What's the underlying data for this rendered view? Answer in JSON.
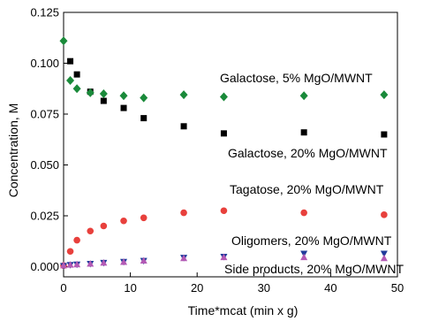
{
  "chart_data": {
    "type": "scatter",
    "title": "",
    "xlabel": "Time*mcat (min x g)",
    "ylabel": "Concentration, M",
    "xlim": [
      0,
      50
    ],
    "ylim": [
      -0.005,
      0.125
    ],
    "xticks": [
      "0",
      "10",
      "20",
      "30",
      "40",
      "50"
    ],
    "yticks": [
      "0.000",
      "0.025",
      "0.050",
      "0.075",
      "0.100",
      "0.125"
    ],
    "grid": false,
    "series": [
      {
        "name": "Galactose, 20% MgO/MWNT",
        "marker": "square",
        "color": "#000000",
        "points": [
          [
            1,
            0.101
          ],
          [
            2,
            0.0945
          ],
          [
            4,
            0.086
          ],
          [
            6,
            0.0815
          ],
          [
            9,
            0.078
          ],
          [
            12,
            0.073
          ],
          [
            18,
            0.069
          ],
          [
            24,
            0.0655
          ],
          [
            36,
            0.066
          ],
          [
            48,
            0.065
          ]
        ]
      },
      {
        "name": "Galactose, 5% MgO/MWNT",
        "marker": "diamond",
        "color": "#1a8a3a",
        "points": [
          [
            0,
            0.111
          ],
          [
            1,
            0.0915
          ],
          [
            2,
            0.0875
          ],
          [
            4,
            0.0855
          ],
          [
            6,
            0.085
          ],
          [
            9,
            0.084
          ],
          [
            12,
            0.083
          ],
          [
            18,
            0.0845
          ],
          [
            24,
            0.0835
          ],
          [
            36,
            0.084
          ],
          [
            48,
            0.0845
          ]
        ]
      },
      {
        "name": "Tagatose, 20% MgO/MWNT",
        "marker": "circle",
        "color": "#e8403c",
        "points": [
          [
            0,
            0.0005
          ],
          [
            1,
            0.0075
          ],
          [
            2,
            0.013
          ],
          [
            4,
            0.0175
          ],
          [
            6,
            0.02
          ],
          [
            9,
            0.0225
          ],
          [
            12,
            0.024
          ],
          [
            18,
            0.0265
          ],
          [
            24,
            0.0275
          ],
          [
            36,
            0.0265
          ],
          [
            48,
            0.0255
          ]
        ]
      },
      {
        "name": "Oligomers, 20% MgO/MWNT",
        "marker": "triangle-down",
        "color": "#1f3b9b",
        "points": [
          [
            0,
            0.0005
          ],
          [
            1,
            0.001
          ],
          [
            2,
            0.0012
          ],
          [
            4,
            0.0015
          ],
          [
            6,
            0.002
          ],
          [
            9,
            0.0025
          ],
          [
            12,
            0.003
          ],
          [
            18,
            0.0045
          ],
          [
            24,
            0.005
          ],
          [
            36,
            0.0065
          ],
          [
            48,
            0.0065
          ]
        ]
      },
      {
        "name": "Side products, 20% MgO/MWNT",
        "marker": "triangle-up",
        "color": "#b35ab5",
        "points": [
          [
            0,
            0.0005
          ],
          [
            1,
            0.0008
          ],
          [
            2,
            0.001
          ],
          [
            4,
            0.0013
          ],
          [
            6,
            0.0018
          ],
          [
            9,
            0.0022
          ],
          [
            12,
            0.0028
          ],
          [
            18,
            0.004
          ],
          [
            24,
            0.0045
          ],
          [
            36,
            0.0045
          ],
          [
            48,
            0.004
          ]
        ]
      }
    ],
    "annotations": [
      "Galactose, 5% MgO/MWNT",
      "Galactose, 20% MgO/MWNT",
      "Tagatose, 20% MgO/MWNT",
      "Oligomers, 20% MgO/MWNT",
      "Side products, 20% MgO/MWNT"
    ]
  }
}
